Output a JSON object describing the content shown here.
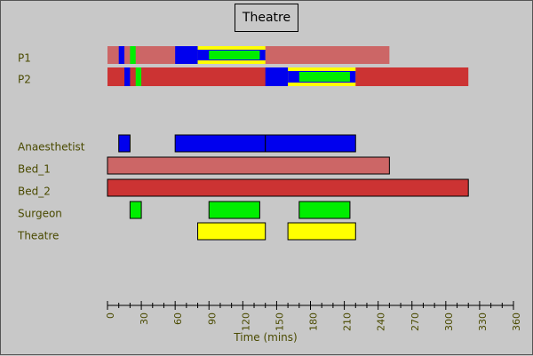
{
  "chart_data": {
    "type": "gantt",
    "title": "Theatre",
    "xlabel": "Time (mins)",
    "xlim": [
      0,
      360
    ],
    "xticks": [
      0,
      30,
      60,
      90,
      120,
      150,
      180,
      210,
      240,
      270,
      300,
      330,
      360
    ],
    "xtick_labels": [
      "0",
      "30",
      "60",
      "90",
      "120",
      "150",
      "180",
      "210",
      "240",
      "270",
      "300",
      "330",
      "360"
    ],
    "grid": false,
    "colors": {
      "background": "#c8c8c8",
      "p1": "#cc6666",
      "p2": "#cc3333",
      "anaesthetist": "#0000ee",
      "surgeon": "#00ee00",
      "theatre": "#ffff00",
      "axis_label": "#4a4a00",
      "tick": "#000000"
    },
    "patients": [
      {
        "name": "P1",
        "color_key": "p1",
        "span": [
          0,
          250
        ],
        "activities": [
          {
            "resource": "anaesthetist",
            "start": 10,
            "end": 15
          },
          {
            "resource": "surgeon",
            "start": 20,
            "end": 25
          },
          {
            "resource": "anaesthetist",
            "start": 60,
            "end": 80
          },
          {
            "resource": "theatre",
            "start": 80,
            "end": 140
          },
          {
            "resource": "anaesthetist",
            "start": 80,
            "end": 140
          },
          {
            "resource": "surgeon",
            "start": 90,
            "end": 135
          }
        ]
      },
      {
        "name": "P2",
        "color_key": "p2",
        "span": [
          0,
          320
        ],
        "activities": [
          {
            "resource": "anaesthetist",
            "start": 15,
            "end": 20
          },
          {
            "resource": "surgeon",
            "start": 25,
            "end": 30
          },
          {
            "resource": "anaesthetist",
            "start": 140,
            "end": 160
          },
          {
            "resource": "theatre",
            "start": 160,
            "end": 220
          },
          {
            "resource": "anaesthetist",
            "start": 160,
            "end": 220
          },
          {
            "resource": "surgeon",
            "start": 170,
            "end": 215
          }
        ]
      }
    ],
    "resources": [
      {
        "name": "Anaesthetist",
        "color_key": "anaesthetist",
        "bars": [
          [
            10,
            20
          ],
          [
            60,
            140
          ],
          [
            140,
            220
          ]
        ]
      },
      {
        "name": "Bed_1",
        "color_key": "p1",
        "bars": [
          [
            0,
            250
          ]
        ]
      },
      {
        "name": "Bed_2",
        "color_key": "p2",
        "bars": [
          [
            0,
            320
          ]
        ]
      },
      {
        "name": "Surgeon",
        "color_key": "surgeon",
        "bars": [
          [
            20,
            30
          ],
          [
            90,
            135
          ],
          [
            170,
            215
          ]
        ]
      },
      {
        "name": "Theatre",
        "color_key": "theatre",
        "bars": [
          [
            80,
            140
          ],
          [
            160,
            220
          ]
        ]
      }
    ]
  }
}
